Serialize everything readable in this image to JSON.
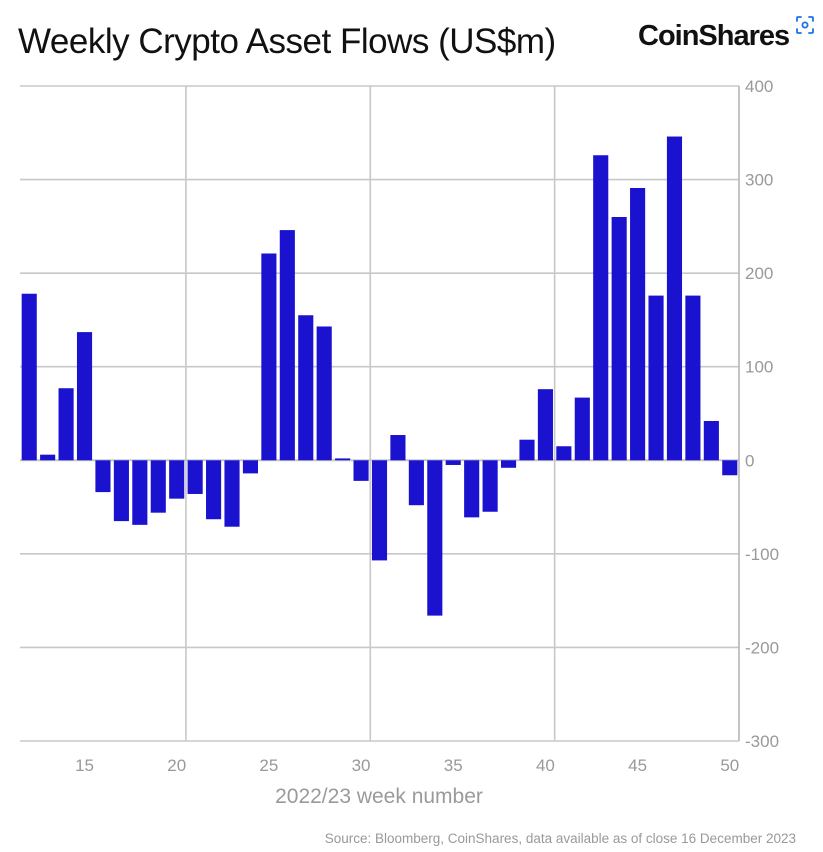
{
  "header": {
    "title": "Weekly Crypto Asset Flows (US$m)",
    "logo_text": "CoinShares",
    "lens_icon": "image-search-lens-icon"
  },
  "footer": {
    "source": "Source: Bloomberg, CoinShares, data available as of close 16 December 2023"
  },
  "colors": {
    "bar": "#1b12d0",
    "grid": "#c8c8c8",
    "tick_text": "#999999"
  },
  "chart_data": {
    "type": "bar",
    "title": "Weekly Crypto Asset Flows (US$m)",
    "xlabel": "2022/23 week number",
    "ylabel": "",
    "x": [
      12,
      13,
      14,
      15,
      16,
      17,
      18,
      19,
      20,
      21,
      22,
      23,
      24,
      25,
      26,
      27,
      28,
      29,
      30,
      31,
      32,
      33,
      34,
      35,
      36,
      37,
      38,
      39,
      40,
      41,
      42,
      43,
      44,
      45,
      46,
      47,
      48,
      49,
      50
    ],
    "values": [
      178,
      6,
      77,
      137,
      -34,
      -65,
      -69,
      -56,
      -41,
      -36,
      -63,
      -71,
      -14,
      221,
      246,
      155,
      143,
      2,
      -22,
      -107,
      27,
      -48,
      -166,
      -5,
      -61,
      -55,
      -8,
      22,
      76,
      15,
      67,
      326,
      260,
      291,
      176,
      346,
      176,
      42,
      -16
    ],
    "xlim": [
      11.5,
      50.5
    ],
    "ylim": [
      -300,
      400
    ],
    "x_ticks": [
      15,
      20,
      25,
      30,
      35,
      40,
      45,
      50
    ],
    "x_tick_labels": [
      "15",
      "20",
      "25",
      "30",
      "35",
      "40",
      "45",
      "50"
    ],
    "y_ticks": [
      400,
      300,
      200,
      100,
      0,
      -100,
      -200,
      -300
    ],
    "y_tick_labels": [
      "400",
      "300",
      "200",
      "100",
      "0",
      "-100",
      "-200",
      "-300"
    ],
    "vertical_grid_at": [
      20.5,
      30.5,
      40.5
    ],
    "grid": true,
    "y_axis_side": "right",
    "legend": "none",
    "source": "Source: Bloomberg, CoinShares, data available as of close 16 December 2023"
  }
}
